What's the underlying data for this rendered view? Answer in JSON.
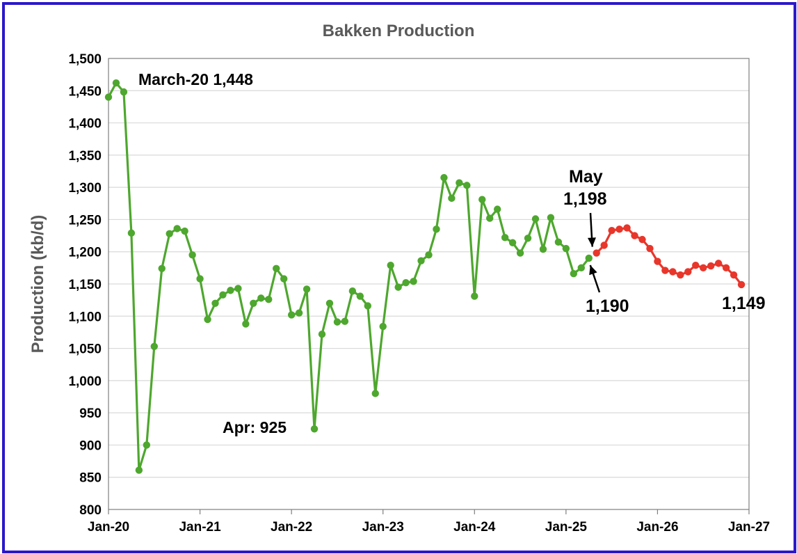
{
  "chart_data": {
    "type": "line",
    "title": "Bakken Production",
    "ylabel": "Production (kb/d)",
    "xlabel": "",
    "ylim": [
      800,
      1500
    ],
    "yticks": [
      800,
      850,
      900,
      950,
      1000,
      1050,
      1100,
      1150,
      1200,
      1250,
      1300,
      1350,
      1400,
      1450,
      1500
    ],
    "ytick_labels": [
      "800",
      "850",
      "900",
      "950",
      "1,000",
      "1,050",
      "1,100",
      "1,150",
      "1,200",
      "1,250",
      "1,300",
      "1,350",
      "1,400",
      "1,450",
      "1,500"
    ],
    "xticks": [
      "Jan-20",
      "Jan-21",
      "Jan-22",
      "Jan-23",
      "Jan-24",
      "Jan-25",
      "Jan-26",
      "Jan-27"
    ],
    "x_start": "Jan-20",
    "grid": true,
    "series": [
      {
        "color": "#4ea72e",
        "values": [
          1440,
          1462,
          1448,
          1229,
          861,
          900,
          1053,
          1174,
          1228,
          1236,
          1232,
          1195,
          1158,
          1095,
          1120,
          1133,
          1140,
          1143,
          1088,
          1120,
          1128,
          1126,
          1174,
          1158,
          1102,
          1105,
          1142,
          925,
          1072,
          1120,
          1091,
          1092,
          1139,
          1131,
          1116,
          980,
          1084,
          1179,
          1145,
          1152,
          1154,
          1186,
          1195,
          1235,
          1315,
          1283,
          1307,
          1303,
          1131,
          1281,
          1252,
          1266,
          1222,
          1214,
          1198,
          1221,
          1251,
          1204,
          1253,
          1215,
          1205,
          1166,
          1175,
          1190
        ]
      },
      {
        "color": "#e8362b",
        "values": [
          1198,
          1210,
          1233,
          1235,
          1237,
          1225,
          1219,
          1205,
          1185,
          1171,
          1169,
          1164,
          1169,
          1179,
          1175,
          1178,
          1182,
          1175,
          1164,
          1149
        ]
      }
    ],
    "annotations": [
      {
        "text": "March-20 1,448"
      },
      {
        "text": "Apr: 925"
      },
      {
        "text": "May"
      },
      {
        "text": "1,198"
      },
      {
        "text": "1,190"
      },
      {
        "text": "1,149"
      }
    ]
  }
}
